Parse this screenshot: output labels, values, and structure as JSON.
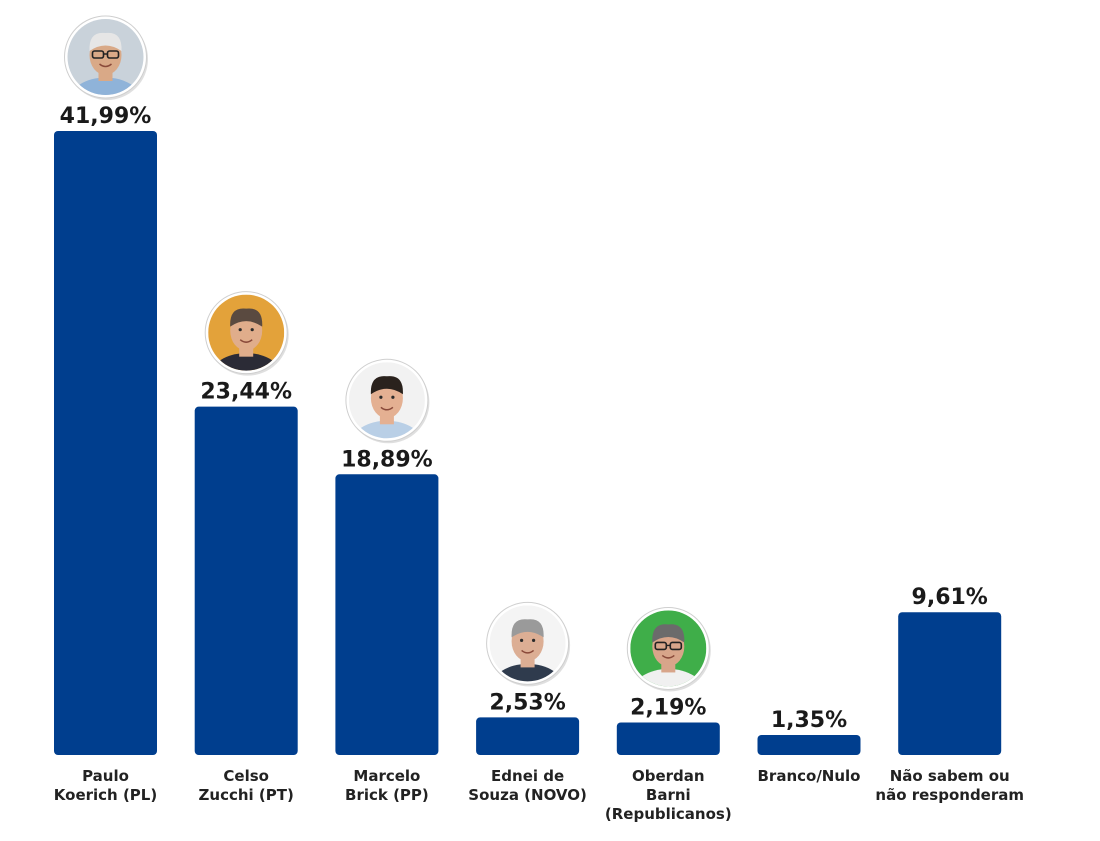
{
  "chart_data": {
    "type": "bar",
    "title": "",
    "xlabel": "",
    "ylabel": "",
    "ylim": [
      0,
      42
    ],
    "grid": false,
    "bar_color": "#003E8E",
    "categories": [
      [
        "Paulo",
        "Koerich (PL)"
      ],
      [
        "Celso",
        "Zucchi (PT)"
      ],
      [
        "Marcelo",
        "Brick (PP)"
      ],
      [
        "Ednei de",
        "Souza (NOVO)"
      ],
      [
        "Oberdan",
        "Barni",
        "(Republicanos)"
      ],
      [
        "Branco/Nulo"
      ],
      [
        "Não sabem ou",
        "não responderam"
      ]
    ],
    "values": [
      41.99,
      23.44,
      18.89,
      2.53,
      2.19,
      1.35,
      9.61
    ],
    "value_labels": [
      "41,99%",
      "23,44%",
      "18,89%",
      "2,53%",
      "2,19%",
      "1,35%",
      "9,61%"
    ],
    "photos": [
      {
        "name": "paulo-koerich-photo-icon",
        "bg": "#c9d2da",
        "shirt": "#8fb3d9",
        "skin": "#d9a987",
        "hair": "#e6e6e6",
        "glasses": true
      },
      {
        "name": "celso-zucchi-photo-icon",
        "bg": "#e3a23a",
        "shirt": "#2b2b36",
        "skin": "#e0ad8b",
        "hair": "#5a4a40",
        "glasses": false
      },
      {
        "name": "marcelo-brick-photo-icon",
        "bg": "#f2f2f2",
        "shirt": "#b9cfe6",
        "skin": "#e4b092",
        "hair": "#2a221d",
        "glasses": false
      },
      {
        "name": "ednei-de-souza-photo-icon",
        "bg": "#f4f4f4",
        "shirt": "#2f3b4d",
        "skin": "#dcae94",
        "hair": "#9a9a9a",
        "glasses": false
      },
      {
        "name": "oberdan-barni-photo-icon",
        "bg": "#3fae49",
        "shirt": "#f0f0f0",
        "skin": "#d8a58a",
        "hair": "#6b6b6b",
        "glasses": true
      },
      null,
      null
    ]
  }
}
